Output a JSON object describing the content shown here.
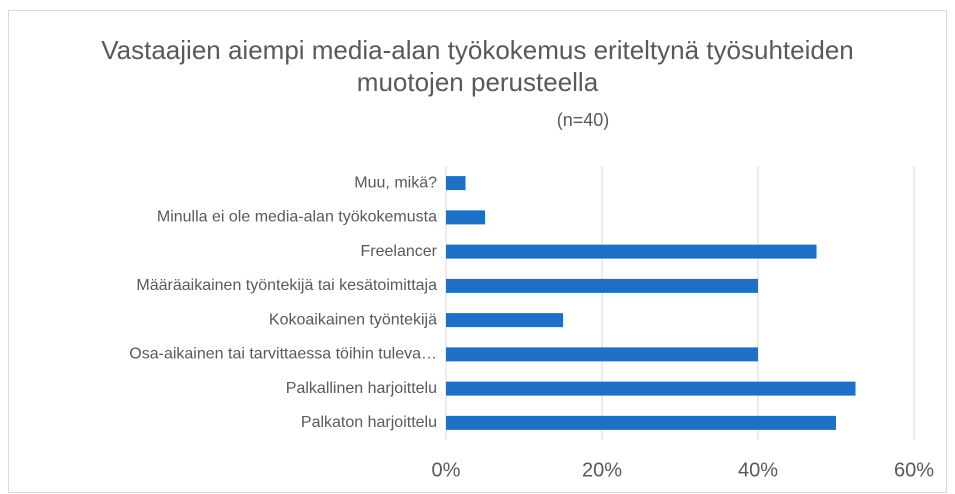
{
  "chart_data": {
    "type": "barh",
    "title": "Vastaajien aiempi media-alan työkokemus eriteltynä työsuhteiden muotojen perusteella",
    "subtitle": "(n=40)",
    "categories": [
      "Muu, mikä?",
      "Minulla ei ole media-alan työkokemusta",
      "Freelancer",
      "Määräaikainen työntekijä tai kesätoimittaja",
      "Kokoaikainen työntekijä",
      "Osa-aikainen tai tarvittaessa töihin tuleva…",
      "Palkallinen harjoittelu",
      "Palkaton harjoittelu"
    ],
    "values": [
      2.5,
      5,
      47.5,
      40,
      15,
      40,
      52.5,
      50
    ],
    "color": "#1f6fc5",
    "xlim": [
      0,
      60
    ],
    "xticks": [
      {
        "value": 0,
        "label": "0%"
      },
      {
        "value": 20,
        "label": "20%"
      },
      {
        "value": 40,
        "label": "40%"
      },
      {
        "value": 60,
        "label": "60%"
      }
    ],
    "grid": true
  }
}
